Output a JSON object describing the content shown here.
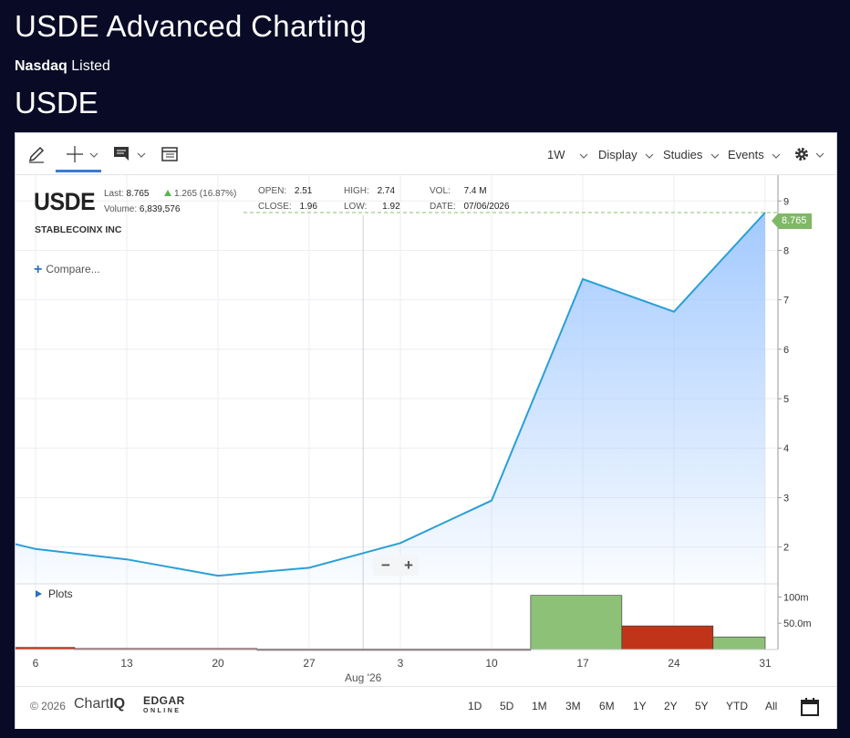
{
  "page": {
    "title": "USDE Advanced Charting",
    "exchange": "Nasdaq",
    "listed_label": "Listed",
    "ticker": "USDE"
  },
  "toolbar": {
    "tools": [
      {
        "name": "draw",
        "icon": "pencil-icon"
      },
      {
        "name": "crosshair",
        "icon": "crosshair-icon",
        "active": true
      },
      {
        "name": "info",
        "icon": "chat-icon"
      },
      {
        "name": "table",
        "icon": "table-icon"
      }
    ],
    "periodicity": "1W",
    "display_label": "Display",
    "studies_label": "Studies",
    "events_label": "Events",
    "settings_icon": "gear-icon"
  },
  "quote": {
    "symbol": "USDE",
    "name": "STABLECOINX INC",
    "last_label": "Last:",
    "last": "8.765",
    "change": "1.265 (16.87%)",
    "volume_label": "Volume:",
    "volume": "6,839,576",
    "open_label": "OPEN:",
    "open": "2.51",
    "close_label": "CLOSE:",
    "close": "1.96",
    "high_label": "HIGH:",
    "high": "2.74",
    "low_label": "LOW:",
    "low": "1.92",
    "vol_label": "VOL:",
    "vol": "7.4 M",
    "date_label": "DATE:",
    "date": "07/06/2026",
    "up_color": "#5bb450"
  },
  "compare_label": "Compare...",
  "plots_label": "Plots",
  "zoom": {
    "out": "−",
    "in": "+"
  },
  "chart_data": {
    "type": "area",
    "x": [
      "Jul 3",
      "Jul 6",
      "Jul 13",
      "Jul 20",
      "Jul 27",
      "Aug 3",
      "Aug 10",
      "Aug 17",
      "Aug 24",
      "Aug 31"
    ],
    "series": [
      {
        "values": [
          2.15,
          1.96,
          1.75,
          1.42,
          1.58,
          2.08,
          2.94,
          7.42,
          6.76,
          8.765
        ]
      }
    ],
    "ylim": [
      1.2,
      9.2
    ],
    "y_ticks": [
      2,
      3,
      4,
      5,
      6,
      7,
      8,
      9
    ],
    "x_tick_labels": [
      "6",
      "13",
      "20",
      "27",
      "3",
      "10",
      "17",
      "24",
      "31"
    ],
    "x_month_label": "Aug '26",
    "last_price_label": "8.765",
    "line_color": "#2a9fd6",
    "fill_color": "#9ec7ff",
    "volume": {
      "ticks": [
        "100m",
        "50.0m"
      ],
      "bars": [
        {
          "start": "Jul 3",
          "end": "Jul 9",
          "value": 4,
          "direction": "down"
        },
        {
          "start": "Jul 9",
          "end": "Jul 23",
          "value": 2,
          "direction": "down"
        },
        {
          "start": "Jul 23",
          "end": "Aug 13",
          "value": 1,
          "direction": "down"
        },
        {
          "start": "Aug 13",
          "end": "Aug 20",
          "value": 103,
          "direction": "up"
        },
        {
          "start": "Aug 20",
          "end": "Aug 27",
          "value": 45,
          "direction": "down"
        },
        {
          "start": "Aug 27",
          "end": "Aug 31",
          "value": 24,
          "direction": "up"
        }
      ],
      "up_color": "#8dc177",
      "down_color": "#c0351a"
    }
  },
  "footer": {
    "copyright": "© 2026",
    "brand_left": "Chart",
    "brand_right": "IQ",
    "edgar_top": "EDGAR",
    "edgar_bottom": "ONLINE",
    "ranges": [
      "1D",
      "5D",
      "1M",
      "3M",
      "6M",
      "1Y",
      "2Y",
      "5Y",
      "YTD",
      "All"
    ],
    "calendar_icon": "calendar-icon"
  }
}
